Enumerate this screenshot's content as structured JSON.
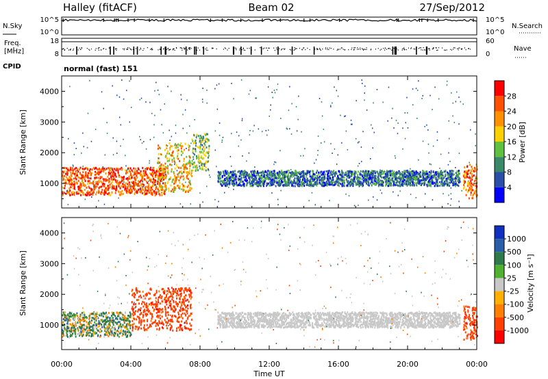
{
  "header": {
    "station": "Halley (fitACF)",
    "beam": "Beam 02",
    "date": "27/Sep/2012"
  },
  "aux_panels": {
    "nsky_label": "N.Sky",
    "nsky_ticks": [
      "10^5",
      "10^0"
    ],
    "nsearch_label": "N.Search",
    "nsearch_ticks": [
      "10^5",
      "10^0"
    ],
    "freq_label_1": "Freq.",
    "freq_label_2": "[MHz]",
    "freq_ticks": [
      "18",
      "8"
    ],
    "nave_label": "Nave",
    "nave_ticks": [
      "60",
      "0"
    ],
    "cpid_label": "CPID",
    "cpid_value": "normal (fast) 151"
  },
  "colors": {
    "power_scale": [
      "#0000ff",
      "#2a4fa8",
      "#3a8a6a",
      "#60c040",
      "#ffd000",
      "#ff9000",
      "#ff5000",
      "#ff0000"
    ],
    "velocity_scale": [
      "#1030c0",
      "#2a5fa8",
      "#2f7a4a",
      "#50b030",
      "#c8c8c8",
      "#ffb000",
      "#ff8000",
      "#ff4000",
      "#ff0000"
    ],
    "ground_scatter": "#bebebe"
  },
  "chart_data": [
    {
      "type": "heatmap",
      "name": "power",
      "ylabel": "Slant Range [km]",
      "ylim": [
        200,
        4500
      ],
      "yticks": [
        1000,
        2000,
        3000,
        4000
      ],
      "xlim_hours": [
        0,
        24
      ],
      "colorbar": {
        "label": "Power [dB]",
        "range": [
          0,
          32
        ],
        "ticks": [
          4,
          8,
          12,
          16,
          20,
          24,
          28
        ]
      },
      "regions": [
        {
          "t": [
            0,
            6
          ],
          "range": [
            600,
            1500
          ],
          "value": 26
        },
        {
          "t": [
            5.5,
            7.5
          ],
          "range": [
            700,
            2300
          ],
          "value": 20
        },
        {
          "t": [
            7.5,
            8.5
          ],
          "range": [
            1400,
            2600
          ],
          "value": 14
        },
        {
          "t": [
            9,
            23
          ],
          "range": [
            900,
            1400
          ],
          "value": 8
        },
        {
          "t": [
            23.2,
            24
          ],
          "range": [
            500,
            1600
          ],
          "value": 24
        }
      ]
    },
    {
      "type": "heatmap",
      "name": "velocity",
      "ylabel": "Slant Range [km]",
      "xlabel": "Time UT",
      "ylim": [
        200,
        4500
      ],
      "yticks": [
        1000,
        2000,
        3000,
        4000
      ],
      "xlim_hours": [
        0,
        24
      ],
      "xticks": [
        "00:00",
        "04:00",
        "08:00",
        "12:00",
        "16:00",
        "20:00",
        "00:00"
      ],
      "colorbar": {
        "label": "Velocity [m s⁻¹]",
        "ticks": [
          "1000",
          "500",
          "100",
          "25",
          "-25",
          "-100",
          "-500",
          "-1000"
        ]
      },
      "regions": [
        {
          "t": [
            0,
            4
          ],
          "range": [
            600,
            1400
          ],
          "value": 100
        },
        {
          "t": [
            4,
            7.5
          ],
          "range": [
            800,
            2200
          ],
          "value": -500
        },
        {
          "t": [
            9,
            23
          ],
          "range": [
            900,
            1400
          ],
          "value": 0
        },
        {
          "t": [
            23.2,
            24
          ],
          "range": [
            500,
            1600
          ],
          "value": -500
        }
      ]
    }
  ]
}
